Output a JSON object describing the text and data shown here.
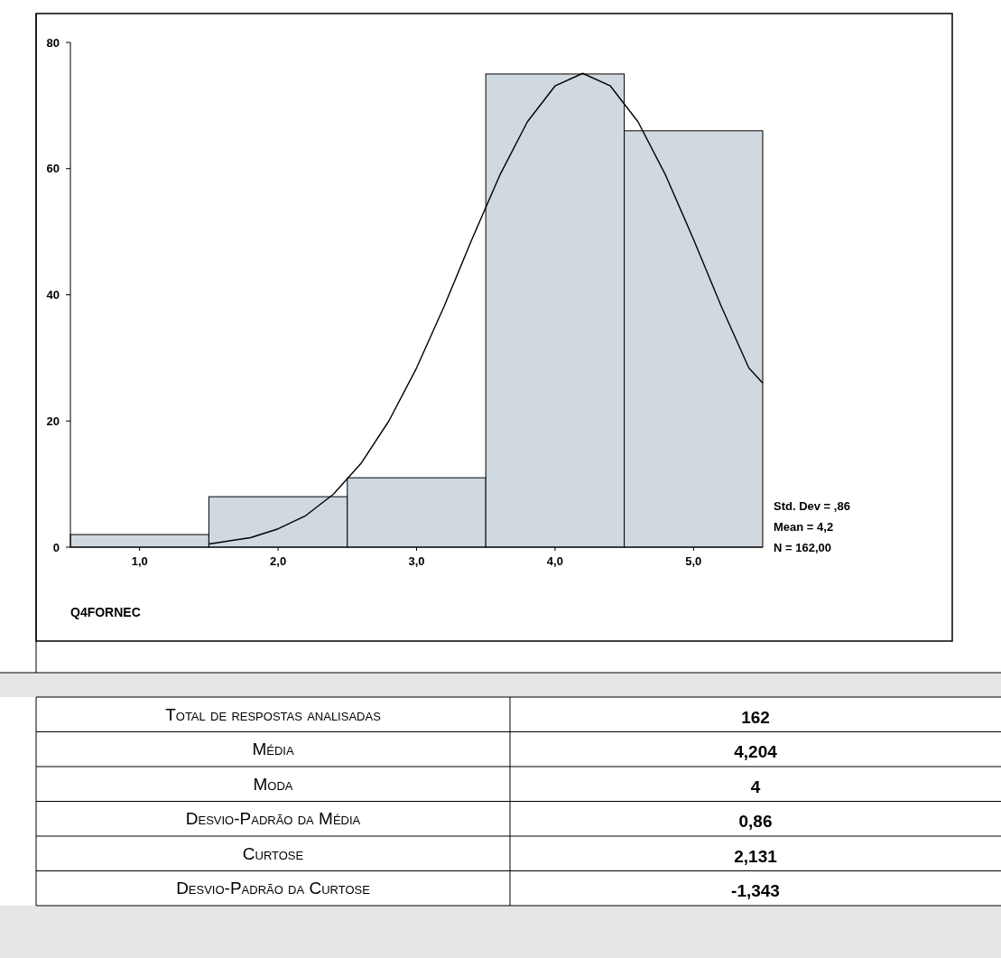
{
  "chart_data": [
    {
      "type": "histogram",
      "xlabel": "Q4FORNEC",
      "bins": [
        0.5,
        1.5,
        2.5,
        3.5,
        4.5,
        5.5
      ],
      "values": [
        2,
        8,
        11,
        75,
        66
      ],
      "color": "#d0d8e0",
      "series": [
        {
          "type": "line",
          "color": "#000000",
          "x": [
            1.5,
            1.8,
            2.0,
            2.2,
            2.4,
            2.6,
            2.8,
            3.0,
            3.2,
            3.4,
            3.6,
            3.8,
            4.0,
            4.2,
            4.4,
            4.6,
            4.8,
            5.0,
            5.2,
            5.4,
            5.5
          ],
          "values": [
            0.5,
            1.5,
            2.9,
            5,
            8.4,
            13.3,
            20,
            28.4,
            38.2,
            48.8,
            58.9,
            67.4,
            73.1,
            75.1,
            73.1,
            67.4,
            58.9,
            48.8,
            38.2,
            28.4,
            26
          ]
        }
      ],
      "xlim": [
        0.5,
        5.5
      ],
      "ylim": [
        0,
        80
      ],
      "xticks": [
        {
          "value": 1,
          "label": "1,0"
        },
        {
          "value": 2,
          "label": "2,0"
        },
        {
          "value": 3,
          "label": "3,0"
        },
        {
          "value": 4,
          "label": "4,0"
        },
        {
          "value": 5,
          "label": "5,0"
        }
      ],
      "yticks": [
        0,
        20,
        40,
        60,
        80
      ],
      "grid": false,
      "annotations": [
        "Std. Dev = ,86",
        "Mean = 4,2",
        "N = 162,00"
      ]
    },
    {
      "type": "other",
      "annotations": [
        "Total de respostas analisadas",
        "162",
        "Média",
        "4,204",
        "Moda",
        "4",
        "Desvio-Padrão da Média",
        "0,86",
        "Curtose",
        "2,131",
        "Desvio-Padrão da Curtose",
        "-1,343"
      ]
    }
  ]
}
